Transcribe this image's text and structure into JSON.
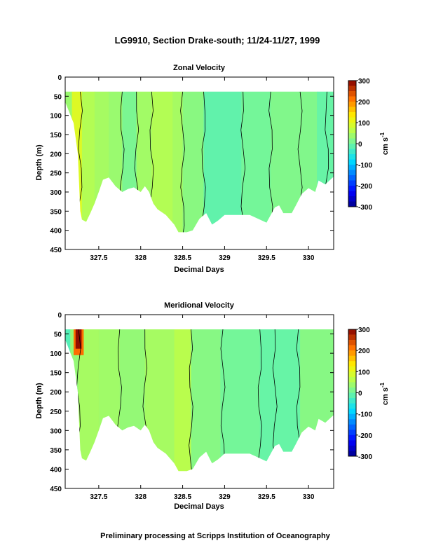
{
  "page": {
    "title": "LG9910, Section Drake-south; 11/24-11/27, 1999",
    "footer": "Preliminary processing at Scripps Institution of Oceanography"
  },
  "chart_data": [
    {
      "type": "heatmap",
      "title": "Zonal Velocity",
      "xlabel": "Decimal Days",
      "ylabel": "Depth (m)",
      "xlim": [
        327.1,
        330.3
      ],
      "ylim": [
        450,
        0
      ],
      "xticks": [
        327.5,
        328,
        328.5,
        329,
        329.5,
        330
      ],
      "yticks": [
        0,
        50,
        100,
        150,
        200,
        250,
        300,
        350,
        400,
        450
      ],
      "colorbar": {
        "label": "cm s",
        "label_superscript": "-1",
        "range": [
          -300,
          300
        ],
        "ticks": [
          300,
          200,
          100,
          0,
          -100,
          -200,
          -300
        ]
      },
      "data_top_depth": 38,
      "bottom_depth": [
        [
          327.1,
          65
        ],
        [
          327.2,
          120
        ],
        [
          327.25,
          200
        ],
        [
          327.28,
          350
        ],
        [
          327.3,
          372
        ],
        [
          327.35,
          378
        ],
        [
          327.4,
          355
        ],
        [
          327.45,
          330
        ],
        [
          327.5,
          300
        ],
        [
          327.55,
          268
        ],
        [
          327.62,
          262
        ],
        [
          327.7,
          285
        ],
        [
          327.78,
          300
        ],
        [
          327.85,
          292
        ],
        [
          327.92,
          288
        ],
        [
          328.0,
          300
        ],
        [
          328.05,
          285
        ],
        [
          328.1,
          300
        ],
        [
          328.15,
          330
        ],
        [
          328.2,
          345
        ],
        [
          328.3,
          360
        ],
        [
          328.4,
          385
        ],
        [
          328.45,
          405
        ],
        [
          328.55,
          405
        ],
        [
          328.62,
          400
        ],
        [
          328.7,
          370
        ],
        [
          328.78,
          355
        ],
        [
          328.85,
          385
        ],
        [
          328.92,
          375
        ],
        [
          329.0,
          360
        ],
        [
          329.1,
          360
        ],
        [
          329.2,
          360
        ],
        [
          329.3,
          360
        ],
        [
          329.4,
          370
        ],
        [
          329.5,
          380
        ],
        [
          329.6,
          340
        ],
        [
          329.65,
          335
        ],
        [
          329.7,
          355
        ],
        [
          329.8,
          355
        ],
        [
          329.85,
          335
        ],
        [
          329.92,
          305
        ],
        [
          330.0,
          290
        ],
        [
          330.08,
          300
        ],
        [
          330.12,
          270
        ],
        [
          330.2,
          280
        ],
        [
          330.3,
          260
        ]
      ],
      "bands": [
        {
          "x": [
            327.1,
            327.18
          ],
          "value": 35
        },
        {
          "x": [
            327.18,
            327.3
          ],
          "value": 95
        },
        {
          "x": [
            327.3,
            327.45
          ],
          "value": 55
        },
        {
          "x": [
            327.45,
            327.62
          ],
          "value": 45
        },
        {
          "x": [
            327.62,
            327.78
          ],
          "value": 35
        },
        {
          "x": [
            327.78,
            327.95
          ],
          "value": 10
        },
        {
          "x": [
            327.95,
            328.13
          ],
          "value": 42
        },
        {
          "x": [
            328.13,
            328.38
          ],
          "value": 55
        },
        {
          "x": [
            328.38,
            328.5
          ],
          "value": 45
        },
        {
          "x": [
            328.5,
            328.75
          ],
          "value": 22
        },
        {
          "x": [
            328.75,
            329.2
          ],
          "value": -10
        },
        {
          "x": [
            329.2,
            329.55
          ],
          "value": 5
        },
        {
          "x": [
            329.55,
            330.1
          ],
          "value": 15
        },
        {
          "x": [
            330.1,
            330.3
          ],
          "value": -5
        }
      ],
      "contour_x": [
        327.28,
        327.78,
        327.95,
        328.13,
        328.5,
        328.75,
        329.22,
        329.55,
        329.9,
        330.22
      ]
    },
    {
      "type": "heatmap",
      "title": "Meridional Velocity",
      "xlabel": "Decimal Days",
      "ylabel": "Depth (m)",
      "xlim": [
        327.1,
        330.3
      ],
      "ylim": [
        450,
        0
      ],
      "xticks": [
        327.5,
        328,
        328.5,
        329,
        329.5,
        330
      ],
      "yticks": [
        0,
        50,
        100,
        150,
        200,
        250,
        300,
        350,
        400,
        450
      ],
      "colorbar": {
        "label": "cm s",
        "label_superscript": "-1",
        "range": [
          -300,
          300
        ],
        "ticks": [
          300,
          200,
          100,
          0,
          -100,
          -200,
          -300
        ]
      },
      "data_top_depth": 38,
      "bottom_depth": [
        [
          327.1,
          65
        ],
        [
          327.2,
          120
        ],
        [
          327.25,
          200
        ],
        [
          327.28,
          350
        ],
        [
          327.3,
          372
        ],
        [
          327.35,
          378
        ],
        [
          327.4,
          355
        ],
        [
          327.45,
          330
        ],
        [
          327.5,
          300
        ],
        [
          327.55,
          268
        ],
        [
          327.62,
          262
        ],
        [
          327.7,
          285
        ],
        [
          327.78,
          300
        ],
        [
          327.85,
          292
        ],
        [
          327.92,
          288
        ],
        [
          328.0,
          300
        ],
        [
          328.05,
          285
        ],
        [
          328.1,
          300
        ],
        [
          328.15,
          330
        ],
        [
          328.2,
          345
        ],
        [
          328.3,
          360
        ],
        [
          328.4,
          385
        ],
        [
          328.45,
          405
        ],
        [
          328.55,
          405
        ],
        [
          328.62,
          400
        ],
        [
          328.7,
          370
        ],
        [
          328.78,
          355
        ],
        [
          328.85,
          385
        ],
        [
          328.92,
          375
        ],
        [
          329.0,
          360
        ],
        [
          329.1,
          360
        ],
        [
          329.2,
          360
        ],
        [
          329.3,
          360
        ],
        [
          329.4,
          370
        ],
        [
          329.5,
          380
        ],
        [
          329.6,
          340
        ],
        [
          329.65,
          335
        ],
        [
          329.7,
          355
        ],
        [
          329.8,
          355
        ],
        [
          329.85,
          335
        ],
        [
          329.92,
          305
        ],
        [
          330.0,
          290
        ],
        [
          330.08,
          300
        ],
        [
          330.12,
          270
        ],
        [
          330.2,
          280
        ],
        [
          330.3,
          260
        ]
      ],
      "bands": [
        {
          "x": [
            327.1,
            327.16
          ],
          "value": -20
        },
        {
          "x": [
            327.16,
            327.26
          ],
          "value": 30
        },
        {
          "x": [
            327.26,
            327.5
          ],
          "value": 45
        },
        {
          "x": [
            327.5,
            327.75
          ],
          "value": 40
        },
        {
          "x": [
            327.75,
            328.05
          ],
          "value": 30
        },
        {
          "x": [
            328.05,
            328.4
          ],
          "value": 45
        },
        {
          "x": [
            328.4,
            328.6
          ],
          "value": 60
        },
        {
          "x": [
            328.6,
            328.95
          ],
          "value": 20
        },
        {
          "x": [
            328.95,
            329.42
          ],
          "value": 5
        },
        {
          "x": [
            329.42,
            329.9
          ],
          "value": -5
        },
        {
          "x": [
            329.9,
            330.3
          ],
          "value": 20
        }
      ],
      "hotspot": {
        "x": [
          327.2,
          327.32
        ],
        "depth": [
          38,
          105
        ],
        "value": 290
      },
      "contour_x": [
        327.26,
        327.75,
        328.05,
        328.6,
        328.98,
        329.42,
        329.6,
        329.88
      ]
    }
  ]
}
